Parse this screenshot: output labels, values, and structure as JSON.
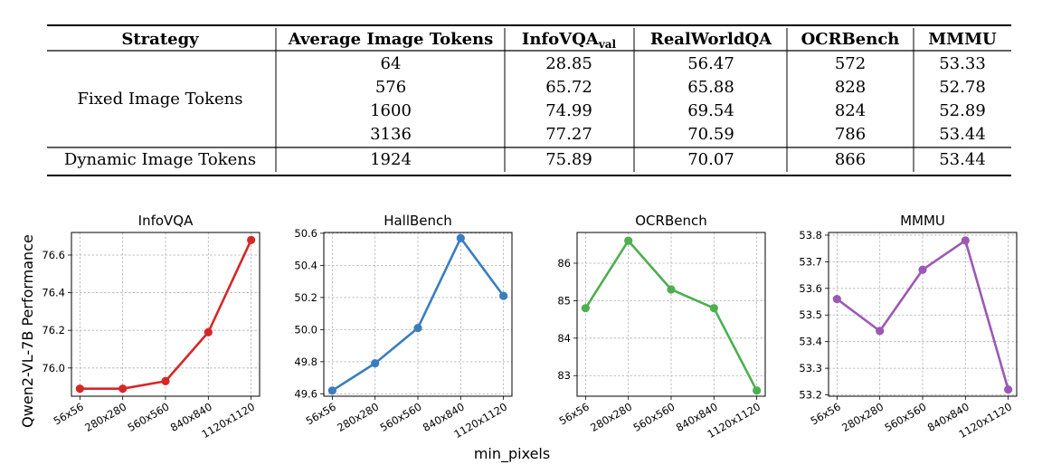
{
  "table": {
    "headers": [
      "Strategy",
      "Average Image Tokens",
      "InfoVQA",
      "RealWorldQA",
      "OCRBench",
      "MMMU"
    ],
    "infovqa_subscript": "val",
    "groups": [
      {
        "label": "Fixed Image Tokens",
        "rows": [
          [
            "64",
            "28.85",
            "56.47",
            "572",
            "53.33"
          ],
          [
            "576",
            "65.72",
            "65.88",
            "828",
            "52.78"
          ],
          [
            "1600",
            "74.99",
            "69.54",
            "824",
            "52.89"
          ],
          [
            "3136",
            "77.27",
            "70.59",
            "786",
            "53.44"
          ]
        ]
      },
      {
        "label": "Dynamic Image Tokens",
        "rows": [
          [
            "1924",
            "75.89",
            "70.07",
            "866",
            "53.44"
          ]
        ]
      }
    ]
  },
  "chart_data": [
    {
      "type": "line",
      "title": "InfoVQA",
      "color": "#d62728",
      "categories": [
        "56x56",
        "280x280",
        "560x560",
        "840x840",
        "1120x1120"
      ],
      "values": [
        75.89,
        75.89,
        75.93,
        76.19,
        76.68
      ],
      "ylim": [
        75.85,
        76.72
      ],
      "yticks": [
        76.0,
        76.2,
        76.4,
        76.6
      ],
      "ytick_labels": [
        "76.0",
        "76.2",
        "76.4",
        "76.6"
      ],
      "grid": true
    },
    {
      "type": "line",
      "title": "HallBench",
      "color": "#3a7dbf",
      "categories": [
        "56x56",
        "280x280",
        "560x560",
        "840x840",
        "1120x1120"
      ],
      "values": [
        49.62,
        49.79,
        50.01,
        50.57,
        50.21
      ],
      "ylim": [
        49.585,
        50.605
      ],
      "yticks": [
        49.6,
        49.8,
        50.0,
        50.2,
        50.4,
        50.6
      ],
      "ytick_labels": [
        "49.6",
        "49.8",
        "50.0",
        "50.2",
        "50.4",
        "50.6"
      ],
      "grid": true
    },
    {
      "type": "line",
      "title": "OCRBench",
      "color": "#4caf50",
      "categories": [
        "56x56",
        "280x280",
        "560x560",
        "840x840",
        "1120x1120"
      ],
      "values": [
        84.8,
        86.6,
        85.3,
        84.8,
        82.6
      ],
      "ylim": [
        82.45,
        86.82
      ],
      "yticks": [
        83,
        84,
        85,
        86
      ],
      "ytick_labels": [
        "83",
        "84",
        "85",
        "86"
      ],
      "grid": true
    },
    {
      "type": "line",
      "title": "MMMU",
      "color": "#9b59b6",
      "categories": [
        "56x56",
        "280x280",
        "560x560",
        "840x840",
        "1120x1120"
      ],
      "values": [
        53.56,
        53.44,
        53.67,
        53.78,
        53.22
      ],
      "ylim": [
        53.195,
        53.81
      ],
      "yticks": [
        53.2,
        53.3,
        53.4,
        53.5,
        53.6,
        53.7,
        53.8
      ],
      "ytick_labels": [
        "53.2",
        "53.3",
        "53.4",
        "53.5",
        "53.6",
        "53.7",
        "53.8"
      ],
      "grid": true
    }
  ],
  "shared_axes": {
    "ylabel": "Qwen2-VL-7B Performance",
    "xlabel": "min_pixels"
  }
}
